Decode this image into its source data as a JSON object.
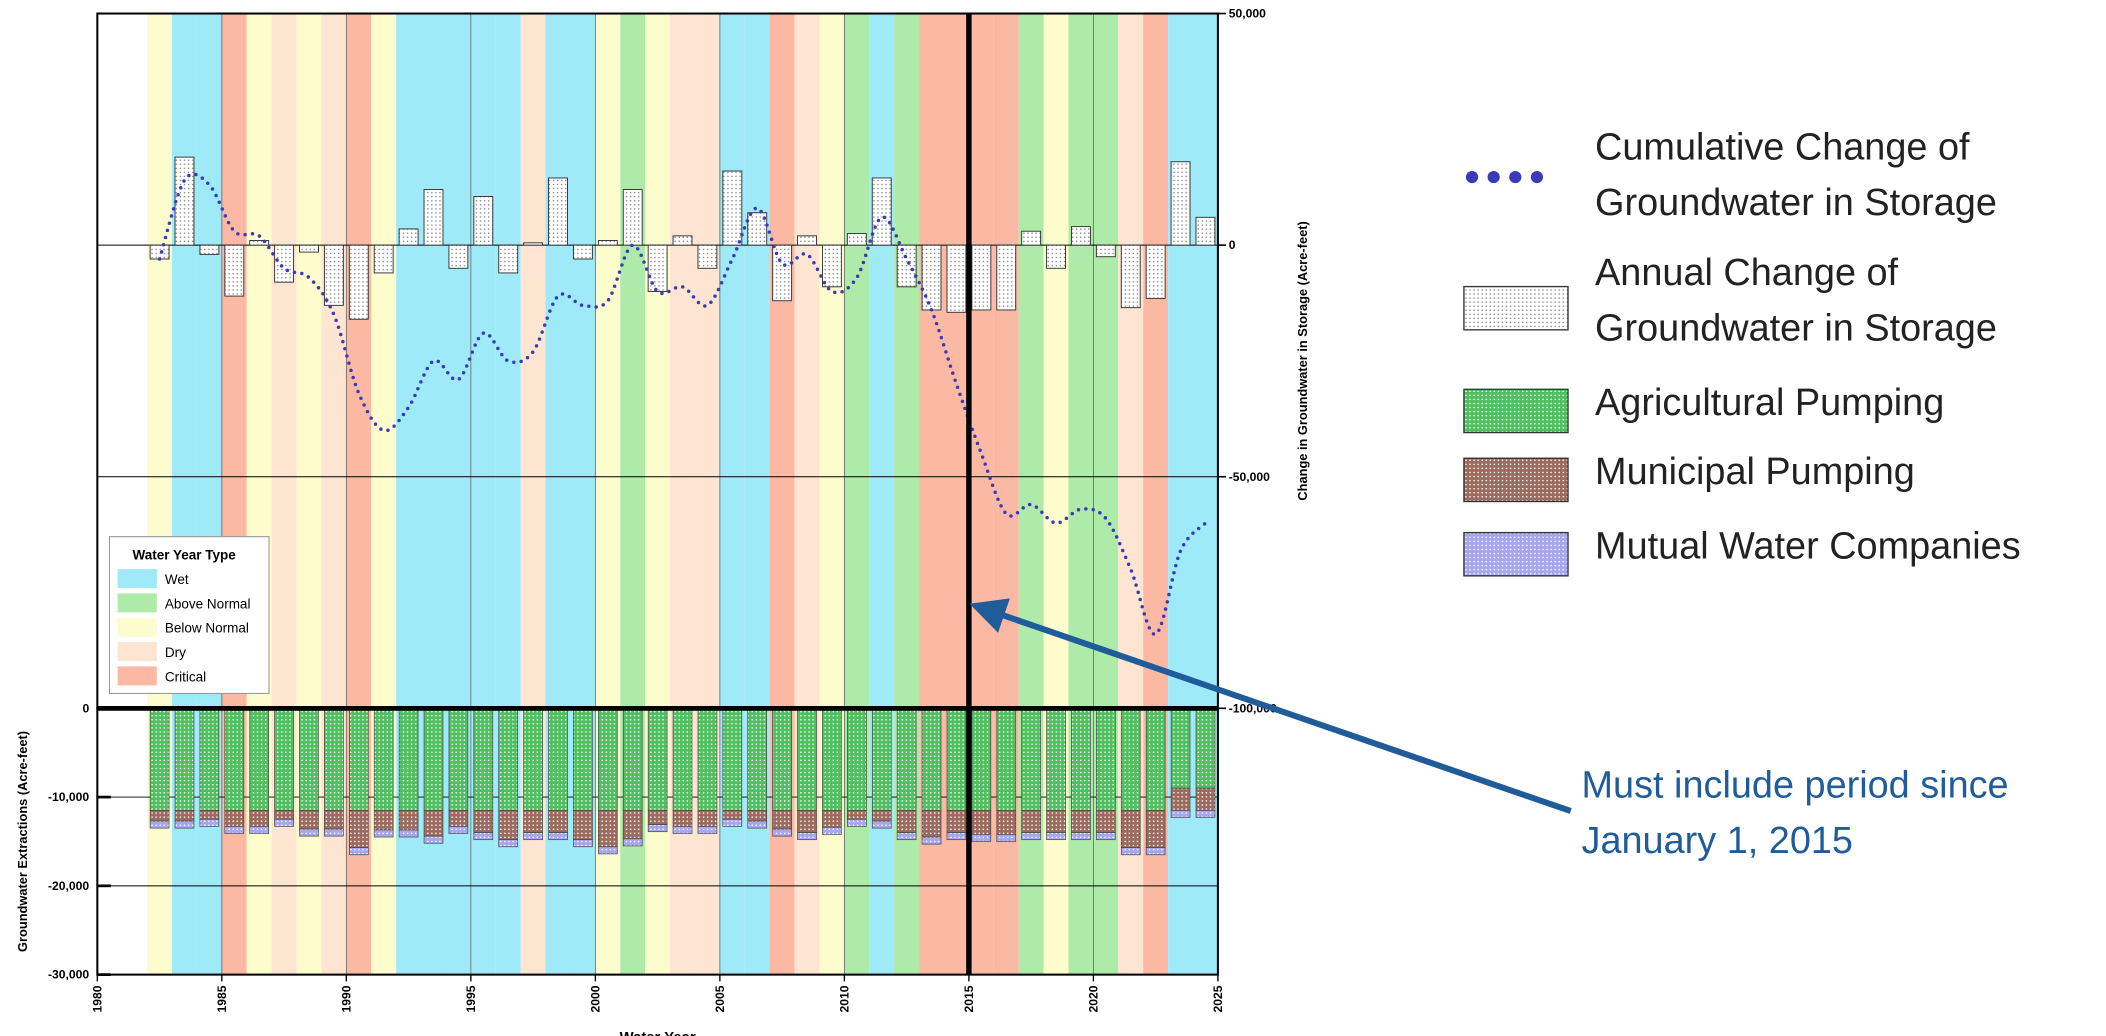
{
  "chart_data": [
    {
      "type": "bar_line",
      "y_label": "Change in Groundwater in Storage (Acre-feet)",
      "xlim": [
        1980,
        2025
      ],
      "ylim": [
        -100000,
        50000
      ],
      "yticks": [
        {
          "value": 50000,
          "label": "50,000"
        },
        0,
        {
          "value": -50000,
          "label": "-50,000"
        },
        {
          "value": -100000,
          "label": "-100,000"
        }
      ],
      "grid": true,
      "x": [
        1983,
        1984,
        1985,
        1986,
        1987,
        1988,
        1989,
        1990,
        1991,
        1992,
        1993,
        1994,
        1995,
        1996,
        1997,
        1998,
        1999,
        2000,
        2001,
        2002,
        2003,
        2004,
        2005,
        2006,
        2007,
        2008,
        2009,
        2010,
        2011,
        2012,
        2013,
        2014,
        2015,
        2016,
        2017,
        2018,
        2019,
        2020,
        2021,
        2022,
        2023,
        2024,
        2025
      ],
      "year_types": [
        "Below Normal",
        "Wet",
        "Wet",
        "Critical",
        "Below Normal",
        "Dry",
        "Below Normal",
        "Dry",
        "Critical",
        "Below Normal",
        "Wet",
        "Wet",
        "Wet",
        "Wet",
        "Wet",
        "Dry",
        "Wet",
        "Wet",
        "Below Normal",
        "Above Normal",
        "Below Normal",
        "Dry",
        "Dry",
        "Wet",
        "Wet",
        "Critical",
        "Dry",
        "Below Normal",
        "Above Normal",
        "Wet",
        "Above Normal",
        "Critical",
        "Critical",
        "Critical",
        "Critical",
        "Above Normal",
        "Below Normal",
        "Above Normal",
        "Above Normal",
        "Dry",
        "Critical",
        "Wet",
        "Wet"
      ],
      "year_type_legend": {
        "title": "Water Year Type",
        "categories": [
          "Wet",
          "Above Normal",
          "Below Normal",
          "Dry",
          "Critical"
        ],
        "colors": [
          "#9eeaf9",
          "#aeeaa8",
          "#fdfccc",
          "#fde5d2",
          "#fbb9a3"
        ]
      },
      "series": [
        {
          "name": "Cumulative Change of Groundwater in Storage",
          "color": "#3b3bb8",
          "mark": "line",
          "values": [
            -3000,
            14000,
            13000,
            3000,
            2000,
            -5000,
            -7000,
            -15000,
            -32000,
            -40000,
            -35000,
            -25000,
            -29000,
            -19000,
            -25000,
            -23000,
            -11000,
            -13000,
            -12000,
            0,
            -10000,
            -9000,
            -13000,
            -3000,
            8000,
            -4000,
            -2000,
            -10000,
            -7000,
            6000,
            -3000,
            -14000,
            -30000,
            -45000,
            -58000,
            -56000,
            -60000,
            -57000,
            -59000,
            -70000,
            -84000,
            -66000,
            -60000
          ]
        },
        {
          "name": "Annual Change of Groundwater in Storage",
          "color": "#ffffff",
          "mark": "bar",
          "values": [
            -3000,
            19000,
            -2000,
            -11000,
            1000,
            -8000,
            -1500,
            -13000,
            -16000,
            -6000,
            3500,
            12000,
            -5000,
            10500,
            -6000,
            500,
            14500,
            -3000,
            1000,
            12000,
            -10000,
            2000,
            -5000,
            16000,
            7000,
            -12000,
            2000,
            -9000,
            2500,
            14500,
            -9000,
            -14000,
            -14500,
            -14000,
            -14000,
            3000,
            -5000,
            4000,
            -2500,
            -13500,
            -11500,
            18000,
            6000
          ]
        }
      ],
      "annotation": {
        "text": "Must include period since January 1, 2015",
        "x": 2015
      }
    },
    {
      "type": "stacked_bar",
      "x_label": "Water Year",
      "y_label": "Groundwater Extractions (Acre-feet)",
      "xlim": [
        1980,
        2025
      ],
      "xticks": [
        1980,
        1985,
        1990,
        1995,
        2000,
        2005,
        2010,
        2015,
        2020,
        2025
      ],
      "ylim": [
        -30000,
        0
      ],
      "yticks": [
        0,
        {
          "value": -10000,
          "label": "-10,000"
        },
        {
          "value": -20000,
          "label": "-20,000"
        },
        {
          "value": -30000,
          "label": "-30,000"
        }
      ],
      "grid": true,
      "x": [
        1983,
        1984,
        1985,
        1986,
        1987,
        1988,
        1989,
        1990,
        1991,
        1992,
        1993,
        1994,
        1995,
        1996,
        1997,
        1998,
        1999,
        2000,
        2001,
        2002,
        2003,
        2004,
        2005,
        2006,
        2007,
        2008,
        2009,
        2010,
        2011,
        2012,
        2013,
        2014,
        2015,
        2016,
        2017,
        2018,
        2019,
        2020,
        2021,
        2022,
        2023,
        2024,
        2025
      ],
      "series": [
        {
          "name": "Agricultural Pumping",
          "color": "#4fbf5f",
          "values": [
            -11500,
            -11500,
            -11500,
            -11500,
            -11500,
            -11500,
            -11500,
            -11500,
            -11500,
            -11500,
            -11500,
            -11500,
            -11500,
            -11500,
            -11500,
            -11500,
            -11500,
            -11500,
            -11500,
            -11500,
            -11500,
            -11500,
            -11500,
            -11500,
            -11500,
            -11500,
            -11500,
            -11500,
            -11500,
            -11500,
            -11500,
            -11500,
            -11500,
            -11500,
            -11500,
            -11500,
            -11500,
            -11500,
            -11500,
            -11500,
            -11500,
            -9000,
            -9000
          ]
        },
        {
          "name": "Municipal Pumping",
          "color": "#9c6b5e",
          "values": [
            -1200,
            -1200,
            -1000,
            -1800,
            -1800,
            -1000,
            -2100,
            -2100,
            -4200,
            -2200,
            -2200,
            -2900,
            -1800,
            -2500,
            -3300,
            -2500,
            -2500,
            -3300,
            -4100,
            -3200,
            -1600,
            -1800,
            -1800,
            -1000,
            -1200,
            -2100,
            -2500,
            -1900,
            -1000,
            -1200,
            -2500,
            -3000,
            -2500,
            -2700,
            -2700,
            -2500,
            -2500,
            -2500,
            -2500,
            -4200,
            -4200,
            -2500,
            -2500
          ]
        },
        {
          "name": "Mutual Water Companies",
          "color": "#a6a6ee",
          "values": [
            -800,
            -800,
            -800,
            -800,
            -800,
            -800,
            -800,
            -800,
            -800,
            -800,
            -800,
            -800,
            -800,
            -800,
            -800,
            -800,
            -800,
            -800,
            -800,
            -800,
            -800,
            -800,
            -800,
            -800,
            -800,
            -800,
            -800,
            -800,
            -800,
            -800,
            -800,
            -800,
            -800,
            -800,
            -800,
            -800,
            -800,
            -800,
            -800,
            -800,
            -800,
            -800,
            -800
          ]
        }
      ]
    }
  ]
}
